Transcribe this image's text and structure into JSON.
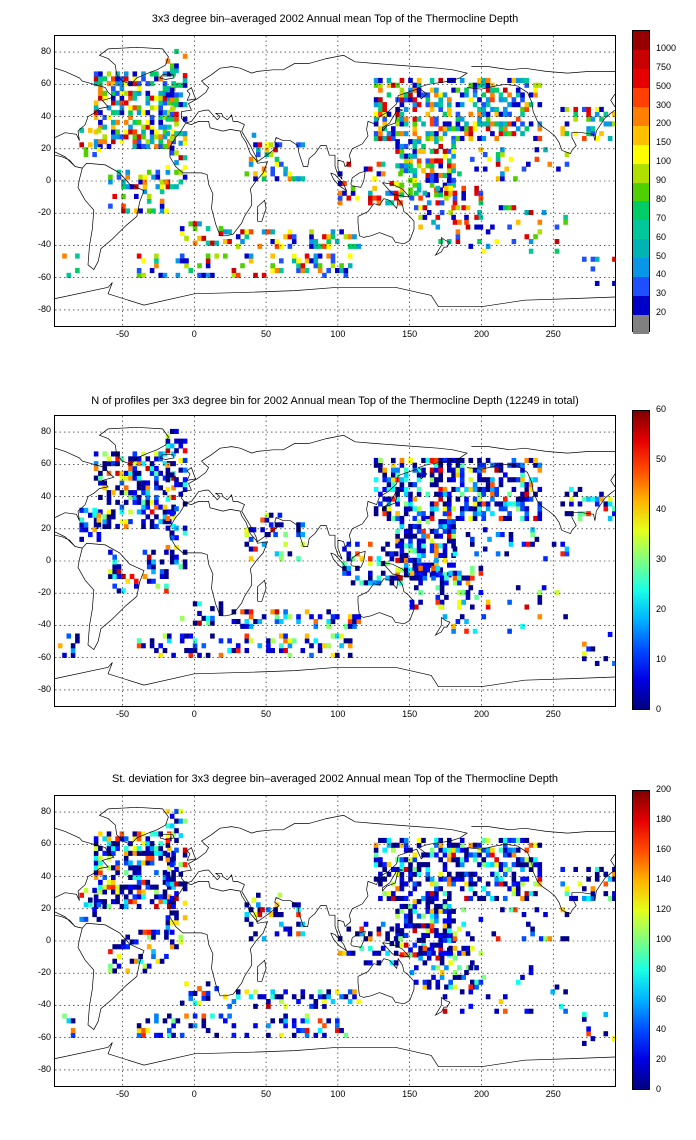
{
  "chart_data": [
    {
      "type": "heatmap",
      "title": "3x3 degree bin–averaged 2002 Annual mean Top of the Thermocline Depth",
      "x_ticks": [
        "-50",
        "0",
        "50",
        "100",
        "150",
        "200",
        "250"
      ],
      "x_values": [
        -50,
        0,
        50,
        100,
        150,
        200,
        250
      ],
      "y_ticks": [
        "80",
        "60",
        "40",
        "20",
        "0",
        "-20",
        "-40",
        "-60",
        "-80"
      ],
      "y_values": [
        80,
        60,
        40,
        20,
        0,
        -20,
        -40,
        -60,
        -80
      ],
      "xlim": [
        -97,
        293
      ],
      "ylim": [
        -90,
        90
      ],
      "grid": true,
      "colorbar": {
        "scale": "categorical",
        "labels": [
          "20",
          "30",
          "40",
          "50",
          "60",
          "70",
          "80",
          "90",
          "100",
          "150",
          "200",
          "300",
          "500",
          "750",
          "1000"
        ],
        "colors": [
          "#808080",
          "#0000c8",
          "#1e50ff",
          "#0a96e6",
          "#00b4b4",
          "#00c89a",
          "#00cc66",
          "#4fd000",
          "#b0e000",
          "#ffff00",
          "#ffc000",
          "#ff8000",
          "#ff4000",
          "#e60000",
          "#c80000",
          "#960000"
        ]
      }
    },
    {
      "type": "heatmap",
      "title": "N of profiles per 3x3 degree bin for 2002 Annual mean Top of the Thermocline Depth  (12249 in total)",
      "x_ticks": [
        "-50",
        "0",
        "50",
        "100",
        "150",
        "200",
        "250"
      ],
      "x_values": [
        -50,
        0,
        50,
        100,
        150,
        200,
        250
      ],
      "y_ticks": [
        "80",
        "60",
        "40",
        "20",
        "0",
        "-20",
        "-40",
        "-60",
        "-80"
      ],
      "y_values": [
        80,
        60,
        40,
        20,
        0,
        -20,
        -40,
        -60,
        -80
      ],
      "xlim": [
        -97,
        293
      ],
      "ylim": [
        -90,
        90
      ],
      "grid": true,
      "colorbar": {
        "scale": "continuous",
        "range": [
          0,
          60
        ],
        "labels": [
          "0",
          "10",
          "20",
          "30",
          "40",
          "50",
          "60"
        ],
        "label_values": [
          0,
          10,
          20,
          30,
          40,
          50,
          60
        ]
      }
    },
    {
      "type": "heatmap",
      "title": "St. deviation for 3x3 degree bin–averaged 2002 Annual mean Top of the Thermocline Depth",
      "x_ticks": [
        "-50",
        "0",
        "50",
        "100",
        "150",
        "200",
        "250"
      ],
      "x_values": [
        -50,
        0,
        50,
        100,
        150,
        200,
        250
      ],
      "y_ticks": [
        "80",
        "60",
        "40",
        "20",
        "0",
        "-20",
        "-40",
        "-60",
        "-80"
      ],
      "y_values": [
        80,
        60,
        40,
        20,
        0,
        -20,
        -40,
        -60,
        -80
      ],
      "xlim": [
        -97,
        293
      ],
      "ylim": [
        -90,
        90
      ],
      "grid": true,
      "colorbar": {
        "scale": "continuous",
        "range": [
          0,
          200
        ],
        "labels": [
          "0",
          "20",
          "40",
          "60",
          "80",
          "100",
          "120",
          "140",
          "160",
          "180",
          "200"
        ],
        "label_values": [
          0,
          20,
          40,
          60,
          80,
          100,
          120,
          140,
          160,
          180,
          200
        ]
      }
    }
  ]
}
